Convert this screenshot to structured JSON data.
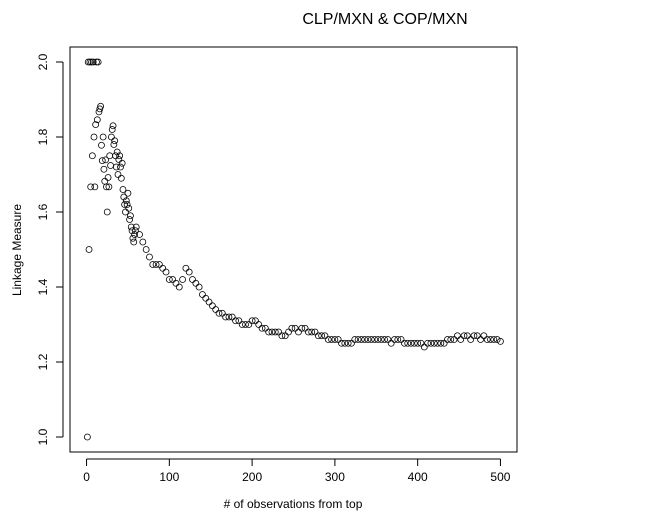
{
  "chart_data": {
    "type": "scatter",
    "title": "CLP/MXN & COP/MXN",
    "x_label": "# of observations from top",
    "y_label": "Linkage Measure",
    "xlim": [
      -20,
      520
    ],
    "ylim": [
      0.96,
      2.04
    ],
    "xticks": [
      0,
      100,
      200,
      300,
      400,
      500
    ],
    "yticks": [
      {
        "value": 1,
        "label": "1.0"
      },
      1.2,
      1.4,
      1.6,
      1.8,
      {
        "value": 2,
        "label": "2.0"
      }
    ],
    "color": "#000000",
    "x": [
      1,
      2,
      3,
      4,
      5,
      6,
      7,
      8,
      9,
      10,
      11,
      12,
      13,
      14,
      15,
      16,
      17,
      18,
      19,
      20,
      21,
      22,
      23,
      24,
      25,
      26,
      27,
      28,
      29,
      30,
      31,
      32,
      33,
      34,
      35,
      36,
      37,
      38,
      39,
      40,
      41,
      42,
      43,
      44,
      45,
      46,
      47,
      48,
      49,
      50,
      51,
      52,
      53,
      54,
      55,
      56,
      57,
      58,
      59,
      60,
      64,
      68,
      72,
      76,
      80,
      84,
      88,
      92,
      96,
      100,
      104,
      108,
      112,
      116,
      120,
      124,
      128,
      132,
      136,
      140,
      144,
      148,
      152,
      156,
      160,
      164,
      168,
      172,
      176,
      180,
      184,
      188,
      192,
      196,
      200,
      204,
      208,
      212,
      216,
      220,
      224,
      228,
      232,
      236,
      240,
      244,
      248,
      252,
      256,
      260,
      264,
      268,
      272,
      276,
      280,
      284,
      288,
      292,
      296,
      300,
      304,
      308,
      312,
      316,
      320,
      324,
      328,
      332,
      336,
      340,
      344,
      348,
      352,
      356,
      360,
      364,
      368,
      372,
      376,
      380,
      384,
      388,
      392,
      396,
      400,
      404,
      408,
      412,
      416,
      420,
      424,
      428,
      432,
      436,
      440,
      444,
      448,
      452,
      456,
      460,
      464,
      468,
      472,
      476,
      480,
      484,
      488,
      492,
      496,
      500
    ],
    "values": [
      1.0,
      2.0,
      1.5,
      2.0,
      1.667,
      2.0,
      1.75,
      2.0,
      1.8,
      1.667,
      1.833,
      2.0,
      1.846,
      2.0,
      1.867,
      1.875,
      1.882,
      1.778,
      1.737,
      1.8,
      1.714,
      1.682,
      1.739,
      1.667,
      1.6,
      1.692,
      1.667,
      1.75,
      1.724,
      1.8,
      1.82,
      1.83,
      1.78,
      1.79,
      1.75,
      1.72,
      1.76,
      1.7,
      1.74,
      1.75,
      1.72,
      1.69,
      1.73,
      1.66,
      1.64,
      1.62,
      1.6,
      1.63,
      1.62,
      1.65,
      1.61,
      1.58,
      1.59,
      1.56,
      1.55,
      1.53,
      1.52,
      1.54,
      1.55,
      1.56,
      1.54,
      1.52,
      1.5,
      1.48,
      1.46,
      1.46,
      1.46,
      1.45,
      1.44,
      1.42,
      1.42,
      1.41,
      1.4,
      1.42,
      1.45,
      1.44,
      1.42,
      1.41,
      1.4,
      1.38,
      1.37,
      1.36,
      1.35,
      1.34,
      1.33,
      1.33,
      1.32,
      1.32,
      1.32,
      1.31,
      1.31,
      1.3,
      1.3,
      1.3,
      1.31,
      1.31,
      1.3,
      1.29,
      1.29,
      1.28,
      1.28,
      1.28,
      1.28,
      1.27,
      1.27,
      1.28,
      1.29,
      1.29,
      1.28,
      1.29,
      1.29,
      1.28,
      1.28,
      1.28,
      1.27,
      1.27,
      1.27,
      1.26,
      1.26,
      1.26,
      1.26,
      1.25,
      1.25,
      1.25,
      1.25,
      1.26,
      1.26,
      1.26,
      1.26,
      1.26,
      1.26,
      1.26,
      1.26,
      1.26,
      1.26,
      1.26,
      1.25,
      1.26,
      1.26,
      1.26,
      1.25,
      1.25,
      1.25,
      1.25,
      1.25,
      1.25,
      1.24,
      1.25,
      1.25,
      1.25,
      1.25,
      1.25,
      1.25,
      1.26,
      1.26,
      1.26,
      1.27,
      1.26,
      1.27,
      1.27,
      1.26,
      1.27,
      1.27,
      1.26,
      1.27,
      1.26,
      1.26,
      1.26,
      1.26,
      1.255
    ]
  }
}
